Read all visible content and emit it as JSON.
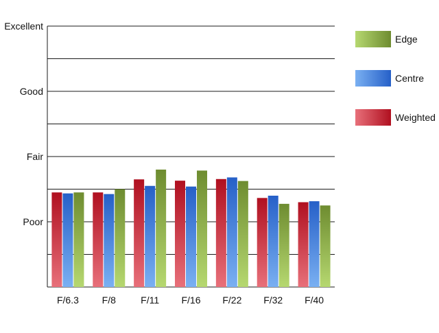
{
  "chart_data": {
    "type": "bar",
    "categories": [
      "F/6.3",
      "F/8",
      "F/11",
      "F/16",
      "F/22",
      "F/32",
      "F/40"
    ],
    "series": [
      {
        "name": "Weighted",
        "values": [
          2.9,
          2.9,
          3.3,
          3.26,
          3.31,
          2.73,
          2.6
        ]
      },
      {
        "name": "Centre",
        "values": [
          2.87,
          2.85,
          3.1,
          3.08,
          3.36,
          2.8,
          2.63
        ]
      },
      {
        "name": "Edge",
        "values": [
          2.9,
          3.0,
          3.6,
          3.57,
          3.25,
          2.55,
          2.5
        ]
      }
    ],
    "ylim": [
      0,
      8
    ],
    "yticks": [
      {
        "value": 2,
        "label": "Poor"
      },
      {
        "value": 4,
        "label": "Fair"
      },
      {
        "value": 6,
        "label": "Good"
      },
      {
        "value": 8,
        "label": "Excellent"
      }
    ],
    "grid": true,
    "legend": {
      "placement": "right",
      "entries": [
        "Edge",
        "Centre",
        "Weighted"
      ]
    },
    "colors": {
      "Weighted": {
        "light": "#e8707a",
        "dark": "#b01020"
      },
      "Centre": {
        "light": "#7ab0f2",
        "dark": "#2660c8"
      },
      "Edge": {
        "light": "#b6d870",
        "dark": "#6e8c30"
      }
    }
  }
}
